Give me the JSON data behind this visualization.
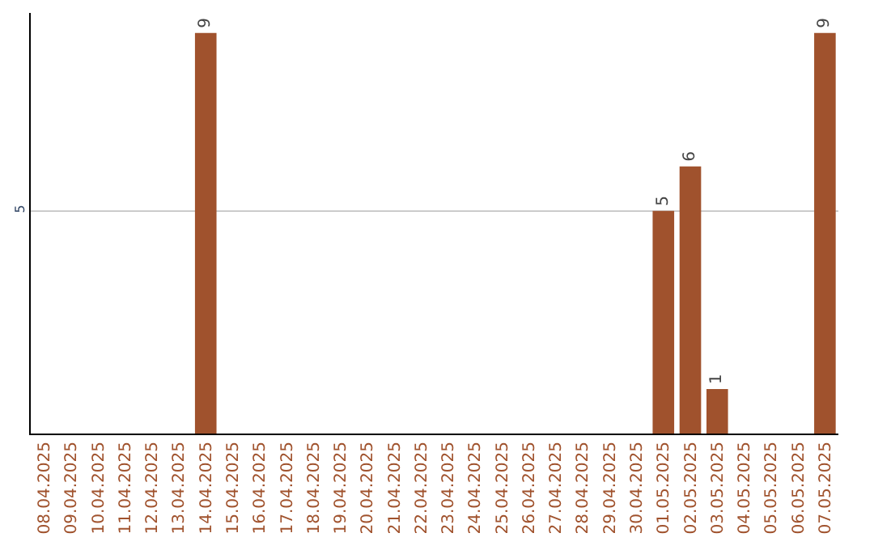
{
  "chart_data": {
    "type": "bar",
    "categories": [
      "08.04.2025",
      "09.04.2025",
      "10.04.2025",
      "11.04.2025",
      "12.04.2025",
      "13.04.2025",
      "14.04.2025",
      "15.04.2025",
      "16.04.2025",
      "17.04.2025",
      "18.04.2025",
      "19.04.2025",
      "20.04.2025",
      "21.04.2025",
      "22.04.2025",
      "23.04.2025",
      "24.04.2025",
      "25.04.2025",
      "26.04.2025",
      "27.04.2025",
      "28.04.2025",
      "29.04.2025",
      "30.04.2025",
      "01.05.2025",
      "02.05.2025",
      "03.05.2025",
      "04.05.2025",
      "05.05.2025",
      "06.05.2025",
      "07.05.2025"
    ],
    "values": [
      0,
      0,
      0,
      0,
      0,
      0,
      9,
      0,
      0,
      0,
      0,
      0,
      0,
      0,
      0,
      0,
      0,
      0,
      0,
      0,
      0,
      0,
      0,
      5,
      6,
      1,
      0,
      0,
      0,
      9
    ],
    "value_labels": [
      null,
      null,
      null,
      null,
      null,
      null,
      "9",
      null,
      null,
      null,
      null,
      null,
      null,
      null,
      null,
      null,
      null,
      null,
      null,
      null,
      null,
      null,
      null,
      "5",
      "6",
      "1",
      null,
      null,
      null,
      "9"
    ],
    "color": "#a0522d",
    "ylim": [
      0,
      9.45
    ],
    "yticks": [
      5
    ],
    "grid": "y"
  }
}
